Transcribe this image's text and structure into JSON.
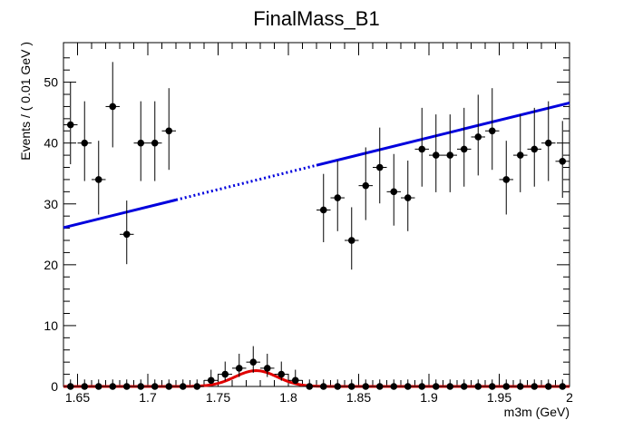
{
  "chart_data": {
    "type": "scatter",
    "title": "FinalMass_B1",
    "xlabel": "m3m (GeV)",
    "ylabel": "Events / ( 0.01 GeV )",
    "xlim": [
      1.64,
      2.0
    ],
    "ylim": [
      0,
      56.5
    ],
    "x_ticks": [
      "1.65",
      "1.7",
      "1.75",
      "1.8",
      "1.85",
      "1.9",
      "1.95",
      "2"
    ],
    "y_ticks": [
      "0",
      "10",
      "20",
      "30",
      "40",
      "50"
    ],
    "grid": false,
    "colors": {
      "points": "#000000",
      "background_fit": "#0000dd",
      "signal_fit": "#e00000"
    },
    "series": [
      {
        "kind": "data-with-errors",
        "x": [
          1.645,
          1.655,
          1.665,
          1.675,
          1.685,
          1.695,
          1.705,
          1.715,
          1.825,
          1.835,
          1.845,
          1.855,
          1.865,
          1.875,
          1.885,
          1.895,
          1.905,
          1.915,
          1.925,
          1.935,
          1.945,
          1.955,
          1.965,
          1.975,
          1.985,
          1.995
        ],
        "y": [
          43,
          40,
          34,
          46,
          25,
          40,
          40,
          42,
          29,
          31,
          24,
          33,
          36,
          32,
          31,
          39,
          38,
          38,
          39,
          41,
          42,
          34,
          38,
          39,
          40,
          37
        ]
      },
      {
        "kind": "data-with-errors",
        "x": [
          1.645,
          1.655,
          1.665,
          1.675,
          1.685,
          1.695,
          1.705,
          1.715,
          1.725,
          1.735,
          1.745,
          1.755,
          1.765,
          1.775,
          1.785,
          1.795,
          1.805,
          1.815,
          1.825,
          1.835,
          1.845,
          1.855,
          1.865,
          1.875,
          1.885,
          1.895,
          1.905,
          1.915,
          1.925,
          1.935,
          1.945,
          1.955,
          1.965,
          1.975,
          1.985,
          1.995
        ],
        "y": [
          0,
          0,
          0,
          0,
          0,
          0,
          0,
          0,
          0,
          0,
          1,
          2,
          3,
          4,
          3,
          2,
          1,
          0,
          0,
          0,
          0,
          0,
          0,
          0,
          0,
          0,
          0,
          0,
          0,
          0,
          0,
          0,
          0,
          0,
          0,
          0
        ]
      },
      {
        "kind": "background-fit",
        "x_range": [
          1.64,
          2.0
        ],
        "y_range": [
          26.1,
          46.6
        ],
        "solid_ranges": [
          [
            1.64,
            1.72
          ],
          [
            1.82,
            2.0
          ]
        ]
      },
      {
        "kind": "signal-fit",
        "mean": 1.777,
        "sigma": 0.015,
        "peak": 2.6
      }
    ]
  }
}
